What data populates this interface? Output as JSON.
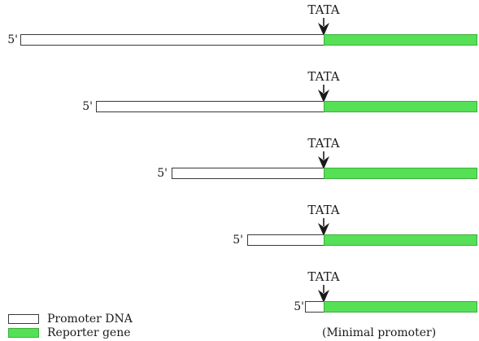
{
  "constructs": [
    {
      "tata_label": "TATA",
      "end_label": "5'"
    },
    {
      "tata_label": "TATA",
      "end_label": "5'"
    },
    {
      "tata_label": "TATA",
      "end_label": "5'"
    },
    {
      "tata_label": "TATA",
      "end_label": "5'"
    },
    {
      "tata_label": "TATA",
      "end_label": "5'"
    }
  ],
  "legend": {
    "promoter_label": "Promoter DNA",
    "reporter_label": "Reporter gene"
  },
  "minimal_note": "(Minimal promoter)",
  "colors": {
    "reporter_fill": "#55e055",
    "promoter_fill": "#ffffff",
    "outline": "#3a3a3a"
  }
}
